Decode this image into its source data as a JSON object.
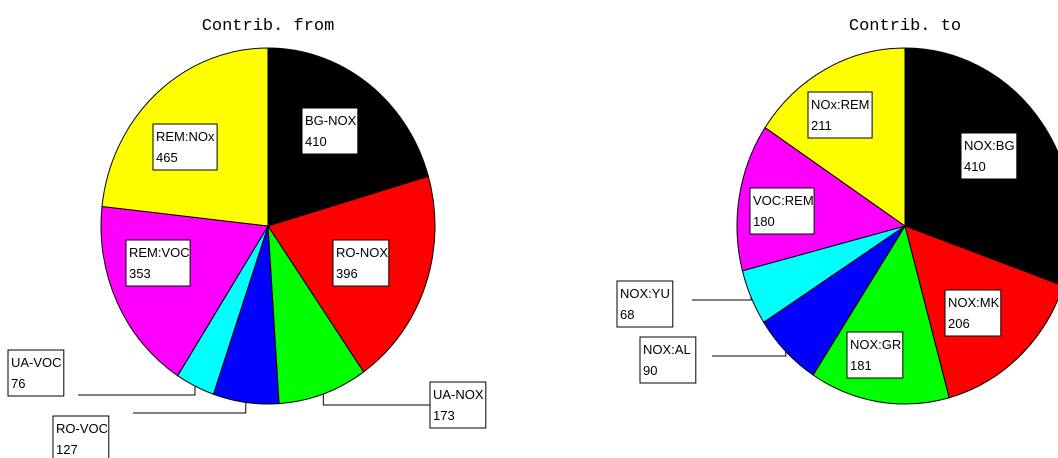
{
  "chart_data": [
    {
      "type": "pie",
      "title": "Contrib. from",
      "categories": [
        "BG-NOX",
        "RO-NOX",
        "UA-NOX",
        "RO-VOC",
        "UA-VOC",
        "REM:VOC",
        "REM:NOx"
      ],
      "values": [
        410,
        396,
        173,
        127,
        76,
        353,
        465
      ],
      "colors": [
        "#000000",
        "#ff0000",
        "#00ff00",
        "#0000ff",
        "#00ffff",
        "#ff00ff",
        "#ffff00"
      ]
    },
    {
      "type": "pie",
      "title": "Contrib. to",
      "categories": [
        "NOX:BG",
        "NOX:MK",
        "NOX:GR",
        "NOX:AL",
        "NOX:YU",
        "VOC:REM",
        "NOx:REM"
      ],
      "values": [
        410,
        206,
        181,
        90,
        68,
        180,
        211
      ],
      "colors": [
        "#000000",
        "#ff0000",
        "#00ff00",
        "#0000ff",
        "#00ffff",
        "#ff00ff",
        "#ffff00"
      ]
    }
  ]
}
